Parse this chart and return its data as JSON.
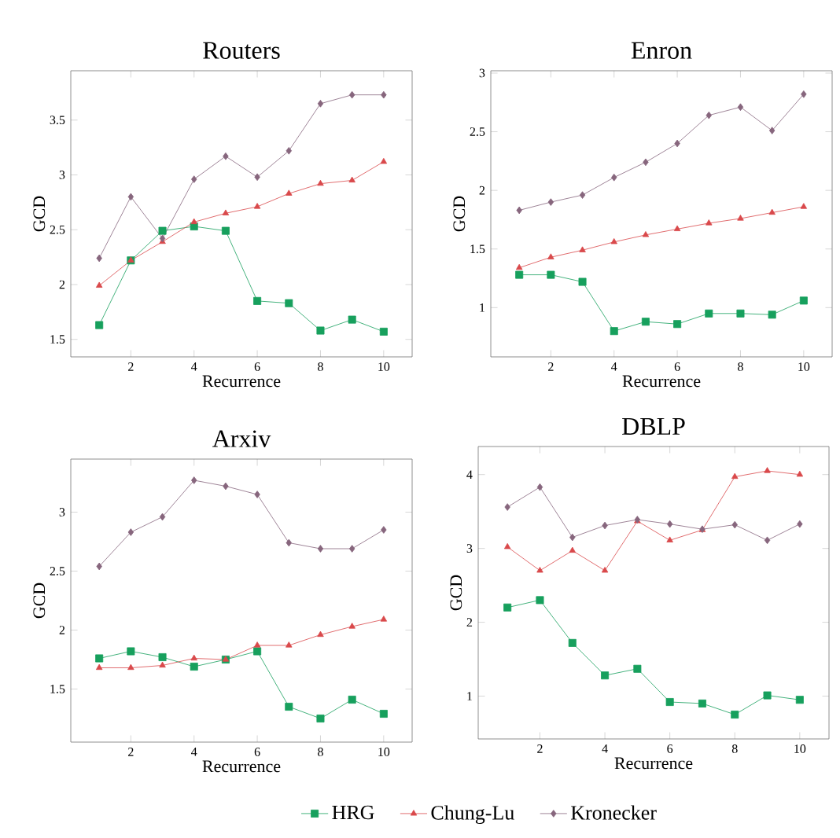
{
  "chart_data": [
    {
      "type": "line",
      "title": "Routers",
      "xlabel": "Recurrence",
      "ylabel": "GCD",
      "x": [
        1,
        2,
        3,
        4,
        5,
        6,
        7,
        8,
        9,
        10
      ],
      "xlim": [
        0.1,
        10.9
      ],
      "xticks": [
        2,
        4,
        6,
        8,
        10
      ],
      "ylim": [
        1.34,
        3.95
      ],
      "yticks": [
        1.5,
        2,
        2.5,
        3,
        3.5
      ],
      "series": [
        {
          "color": "#17a05d",
          "marker": "square",
          "values": [
            1.63,
            2.22,
            2.49,
            2.53,
            2.49,
            1.85,
            1.83,
            1.58,
            1.68,
            1.57
          ]
        },
        {
          "color": "#d9494b",
          "marker": "triangle",
          "values": [
            1.99,
            2.22,
            2.39,
            2.57,
            2.65,
            2.71,
            2.83,
            2.92,
            2.95,
            3.12
          ]
        },
        {
          "color": "#87667d",
          "marker": "diamond",
          "values": [
            2.24,
            2.8,
            2.42,
            2.96,
            3.17,
            2.98,
            3.22,
            3.65,
            3.73,
            3.73
          ]
        }
      ]
    },
    {
      "type": "line",
      "title": "Enron",
      "xlabel": "Recurrence",
      "ylabel": "GCD",
      "x": [
        1,
        2,
        3,
        4,
        5,
        6,
        7,
        8,
        9,
        10
      ],
      "xlim": [
        0.1,
        10.9
      ],
      "xticks": [
        2,
        4,
        6,
        8,
        10
      ],
      "ylim": [
        0.58,
        3.02
      ],
      "yticks": [
        1,
        1.5,
        2,
        2.5,
        3
      ],
      "series": [
        {
          "color": "#17a05d",
          "marker": "square",
          "values": [
            1.28,
            1.28,
            1.22,
            0.8,
            0.88,
            0.86,
            0.95,
            0.95,
            0.94,
            1.06
          ]
        },
        {
          "color": "#d9494b",
          "marker": "triangle",
          "values": [
            1.34,
            1.43,
            1.49,
            1.56,
            1.62,
            1.67,
            1.72,
            1.76,
            1.81,
            1.86
          ]
        },
        {
          "color": "#87667d",
          "marker": "diamond",
          "values": [
            1.83,
            1.9,
            1.96,
            2.11,
            2.24,
            2.4,
            2.64,
            2.71,
            2.51,
            2.82
          ]
        }
      ]
    },
    {
      "type": "line",
      "title": "Arxiv",
      "xlabel": "Recurrence",
      "ylabel": "GCD",
      "x": [
        1,
        2,
        3,
        4,
        5,
        6,
        7,
        8,
        9,
        10
      ],
      "xlim": [
        0.1,
        10.9
      ],
      "xticks": [
        2,
        4,
        6,
        8,
        10
      ],
      "ylim": [
        1.05,
        3.45
      ],
      "yticks": [
        1.5,
        2,
        2.5,
        3
      ],
      "legend": "bottom",
      "series": [
        {
          "name": "HRG",
          "color": "#17a05d",
          "marker": "square",
          "values": [
            1.76,
            1.82,
            1.77,
            1.69,
            1.75,
            1.82,
            1.35,
            1.25,
            1.41,
            1.29
          ]
        },
        {
          "name": "Chung-Lu",
          "color": "#d9494b",
          "marker": "triangle",
          "values": [
            1.68,
            1.68,
            1.7,
            1.76,
            1.75,
            1.87,
            1.87,
            1.96,
            2.03,
            2.09
          ]
        },
        {
          "name": "Kronecker",
          "color": "#87667d",
          "marker": "diamond",
          "values": [
            2.54,
            2.83,
            2.96,
            3.27,
            3.22,
            3.15,
            2.74,
            2.69,
            2.69,
            2.85
          ]
        }
      ]
    },
    {
      "type": "line",
      "title": "DBLP",
      "xlabel": "Recurrence",
      "ylabel": "GCD",
      "x": [
        1,
        2,
        3,
        4,
        5,
        6,
        7,
        8,
        9,
        10
      ],
      "xlim": [
        0.1,
        10.9
      ],
      "xticks": [
        2,
        4,
        6,
        8,
        10
      ],
      "ylim": [
        0.42,
        4.38
      ],
      "yticks": [
        1,
        2,
        3,
        4
      ],
      "series": [
        {
          "color": "#17a05d",
          "marker": "square",
          "values": [
            2.2,
            2.3,
            1.72,
            1.28,
            1.37,
            0.92,
            0.9,
            0.75,
            1.01,
            0.95
          ]
        },
        {
          "color": "#d9494b",
          "marker": "triangle",
          "values": [
            3.02,
            2.7,
            2.97,
            2.7,
            3.37,
            3.11,
            3.25,
            3.97,
            4.05,
            4.0
          ]
        },
        {
          "color": "#87667d",
          "marker": "diamond",
          "values": [
            3.56,
            3.83,
            3.15,
            3.31,
            3.39,
            3.33,
            3.26,
            3.32,
            3.11,
            3.33
          ]
        }
      ]
    }
  ]
}
